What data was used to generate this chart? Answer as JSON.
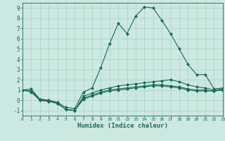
{
  "title": "",
  "xlabel": "Humidex (Indice chaleur)",
  "xlim": [
    0,
    23
  ],
  "ylim": [
    -1.5,
    9.5
  ],
  "xticks": [
    0,
    1,
    2,
    3,
    4,
    5,
    6,
    7,
    8,
    9,
    10,
    11,
    12,
    13,
    14,
    15,
    16,
    17,
    18,
    19,
    20,
    21,
    22,
    23
  ],
  "yticks": [
    -1,
    0,
    1,
    2,
    3,
    4,
    5,
    6,
    7,
    8,
    9
  ],
  "bg_color": "#cce8e0",
  "line_color": "#1a6b5a",
  "grid_color": "#aad4c8",
  "series": [
    [
      1.0,
      1.1,
      0.1,
      0.0,
      -0.2,
      -0.7,
      -0.8,
      0.8,
      1.2,
      3.2,
      5.5,
      7.5,
      6.5,
      8.2,
      9.1,
      9.0,
      7.8,
      6.5,
      5.0,
      3.5,
      2.5,
      2.5,
      1.1,
      1.2
    ],
    [
      1.0,
      0.9,
      0.1,
      0.0,
      -0.3,
      -0.9,
      -1.0,
      0.4,
      0.7,
      1.0,
      1.2,
      1.4,
      1.5,
      1.6,
      1.7,
      1.8,
      1.9,
      2.0,
      1.8,
      1.5,
      1.3,
      1.2,
      1.0,
      1.1
    ],
    [
      1.0,
      0.9,
      0.0,
      -0.1,
      -0.3,
      -0.9,
      -1.0,
      0.2,
      0.5,
      0.8,
      1.0,
      1.1,
      1.2,
      1.3,
      1.4,
      1.5,
      1.5,
      1.4,
      1.3,
      1.1,
      1.0,
      1.0,
      0.9,
      1.0
    ],
    [
      1.0,
      0.8,
      0.0,
      -0.1,
      -0.3,
      -0.9,
      -1.0,
      0.1,
      0.4,
      0.7,
      0.9,
      1.0,
      1.1,
      1.2,
      1.3,
      1.4,
      1.4,
      1.3,
      1.2,
      1.0,
      0.9,
      0.9,
      0.9,
      1.0
    ]
  ],
  "figwidth": 3.2,
  "figheight": 2.0,
  "dpi": 100
}
